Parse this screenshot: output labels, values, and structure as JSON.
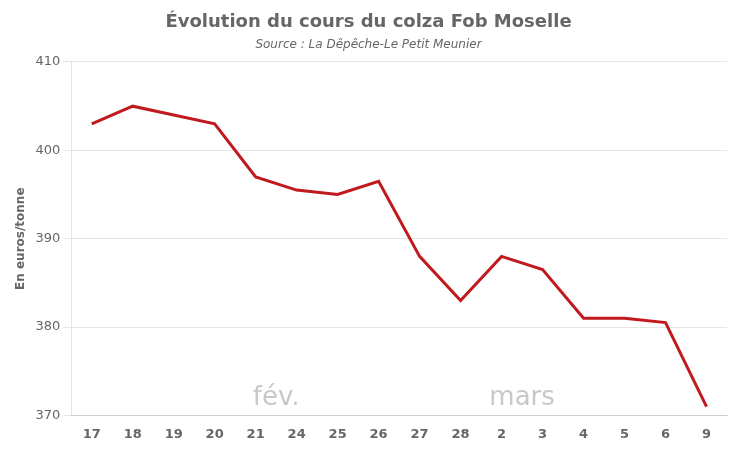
{
  "chart_data": {
    "type": "line",
    "title": "Évolution du cours du colza Fob Moselle",
    "subtitle": "Source : La Dêpêche-Le Petit Meunier",
    "y_label": "En euros/tonne",
    "categories": [
      "17",
      "18",
      "19",
      "20",
      "21",
      "24",
      "25",
      "26",
      "27",
      "28",
      "2",
      "3",
      "4",
      "5",
      "6",
      "9"
    ],
    "values": [
      403,
      405,
      404,
      403,
      397,
      395.5,
      395,
      396.5,
      388,
      383,
      388,
      386.5,
      381,
      381,
      380.5,
      371
    ],
    "color": "#c0191e",
    "ylim": [
      370,
      410
    ],
    "yticks": [
      370,
      380,
      390,
      400,
      410
    ],
    "grid": true,
    "annotations": [
      {
        "text": "fév.",
        "color": "#c8c8c8"
      },
      {
        "text": "mars",
        "color": "#c8c8c8"
      }
    ]
  }
}
